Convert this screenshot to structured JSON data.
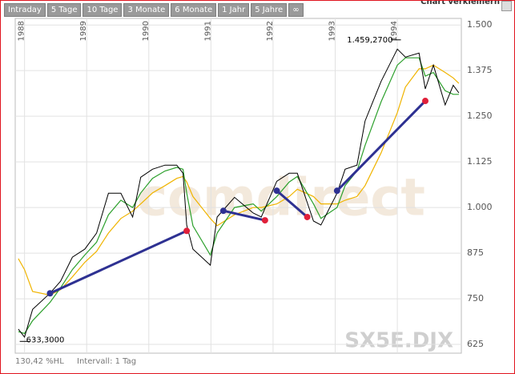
{
  "toolbar": {
    "tabs": [
      "Intraday",
      "5 Tage",
      "10 Tage",
      "3 Monate",
      "6 Monate",
      "1 Jahr",
      "5 Jahre",
      "∞"
    ],
    "action": "Chart verkleinern"
  },
  "footer": {
    "range": "130,42 %HL",
    "interval": "Intervall: 1 Tag"
  },
  "chart_data": {
    "type": "line",
    "watermark": "SX5E.DJX",
    "brand": "comdirect",
    "x": [
      1987.9,
      1988.0,
      1988.13,
      1988.41,
      1988.58,
      1988.77,
      1988.97,
      1989.16,
      1989.35,
      1989.55,
      1989.74,
      1989.87,
      1990.06,
      1990.26,
      1990.45,
      1990.55,
      1990.61,
      1990.71,
      1990.99,
      1991.1,
      1991.38,
      1991.68,
      1991.81,
      1992.06,
      1992.26,
      1992.39,
      1992.65,
      1992.77,
      1993.03,
      1993.16,
      1993.35,
      1993.48,
      1993.74,
      1994.0,
      1994.13,
      1994.35,
      1994.45,
      1994.58,
      1994.77,
      1994.9,
      1994.99
    ],
    "series": [
      {
        "color": "#000000",
        "values": [
          667,
          645,
          721,
          765,
          798,
          864,
          886,
          930,
          1039,
          1039,
          974,
          1083,
          1105,
          1116,
          1116,
          1094,
          952,
          886,
          842,
          974,
          1028,
          985,
          974,
          1072,
          1094,
          1094,
          963,
          952,
          1039,
          1105,
          1116,
          1237,
          1346,
          1434,
          1412,
          1423,
          1325,
          1390,
          1281,
          1335,
          1314
        ]
      },
      {
        "color": "#2ca02c",
        "values": [
          660,
          655,
          690,
          740,
          780,
          830,
          870,
          905,
          980,
          1020,
          1000,
          1040,
          1080,
          1100,
          1110,
          1105,
          1040,
          950,
          870,
          930,
          1000,
          1010,
          990,
          1030,
          1070,
          1085,
          1010,
          970,
          1000,
          1060,
          1100,
          1170,
          1290,
          1390,
          1410,
          1410,
          1360,
          1370,
          1320,
          1310,
          1310
        ]
      },
      {
        "color": "#f0b400",
        "values": [
          860,
          830,
          770,
          760,
          775,
          810,
          850,
          880,
          930,
          970,
          990,
          1010,
          1040,
          1060,
          1080,
          1085,
          1070,
          1030,
          970,
          950,
          980,
          1000,
          1000,
          1010,
          1030,
          1050,
          1030,
          1010,
          1010,
          1020,
          1030,
          1060,
          1150,
          1260,
          1330,
          1380,
          1380,
          1390,
          1370,
          1355,
          1340
        ]
      }
    ],
    "trendline_color": "#2e3192",
    "start_color": "#2e3192",
    "end_color": "#e0203a",
    "trendlines": [
      {
        "x": [
          1988.41,
          1990.61
        ],
        "values": [
          765,
          936
        ]
      },
      {
        "x": [
          1991.2,
          1991.87
        ],
        "values": [
          991,
          965
        ]
      },
      {
        "x": [
          1992.06,
          1992.55
        ],
        "values": [
          1046,
          974
        ]
      },
      {
        "x": [
          1993.03,
          1994.45
        ],
        "values": [
          1046,
          1292
        ]
      }
    ],
    "annotations": [
      {
        "x": 1993.98,
        "value": 1459.27,
        "label": "1.459,2700"
      },
      {
        "x": 1988.0,
        "value": 633.3,
        "label": "633,3000"
      }
    ],
    "xlim": [
      1987.85,
      1995.03
    ],
    "xticks": [
      1988,
      1989,
      1990,
      1991,
      1992,
      1993,
      1994
    ],
    "ylim": [
      601,
      1518
    ],
    "yticks": [
      {
        "value": 1500,
        "label": "1.500"
      },
      {
        "value": 1375,
        "label": "1.375"
      },
      {
        "value": 1250,
        "label": "1.250"
      },
      {
        "value": 1125,
        "label": "1.125"
      },
      {
        "value": 1000,
        "label": "1.000"
      },
      875,
      750,
      625
    ],
    "grid": true
  }
}
